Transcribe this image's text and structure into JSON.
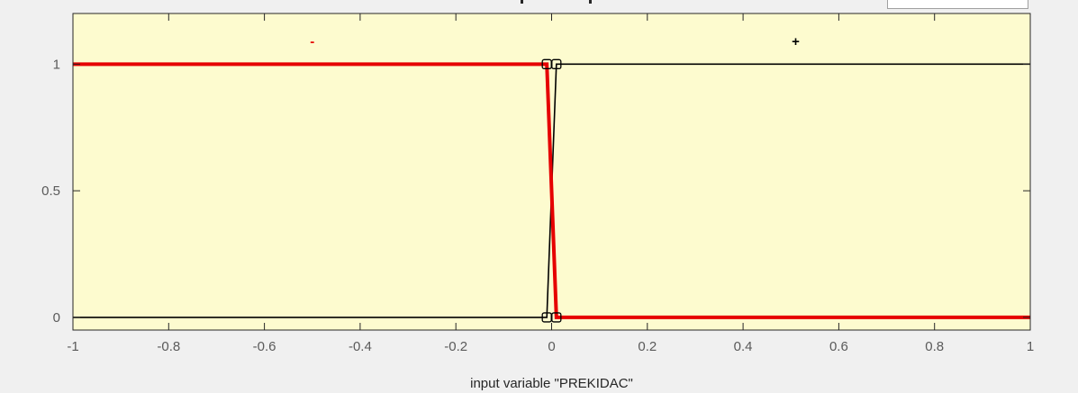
{
  "chart_data": {
    "type": "line",
    "title": "",
    "xlabel": "input variable \"PREKIDAC\"",
    "ylabel": "",
    "xlim": [
      -1,
      1
    ],
    "ylim": [
      -0.05,
      1.2
    ],
    "x_ticks": [
      "-1",
      "-0.8",
      "-0.6",
      "-0.4",
      "-0.2",
      "0",
      "0.2",
      "0.4",
      "0.6",
      "0.8",
      "1"
    ],
    "x_tick_values": [
      -1,
      -0.8,
      -0.6,
      -0.4,
      -0.2,
      0,
      0.2,
      0.4,
      0.6,
      0.8,
      1
    ],
    "y_ticks": [
      "0",
      "0.5",
      "1"
    ],
    "y_tick_values": [
      0,
      0.5,
      1
    ],
    "grid": false,
    "background_color": "#fdfbcf",
    "series": [
      {
        "name": "-",
        "color": "#e60000",
        "highlighted": true,
        "label_at": [
          -0.5,
          1.09
        ],
        "x": [
          -1,
          -0.01,
          0.01,
          1
        ],
        "y": [
          1,
          1,
          0,
          0
        ]
      },
      {
        "name": "+",
        "color": "#000000",
        "highlighted": false,
        "label_at": [
          0.51,
          1.09
        ],
        "x": [
          -1,
          -0.01,
          0.01,
          1
        ],
        "y": [
          0,
          0,
          1,
          1
        ]
      }
    ],
    "markers": [
      {
        "x": -0.01,
        "y": 1
      },
      {
        "x": 0.01,
        "y": 1
      },
      {
        "x": -0.01,
        "y": 0
      },
      {
        "x": 0.01,
        "y": 0
      }
    ]
  }
}
